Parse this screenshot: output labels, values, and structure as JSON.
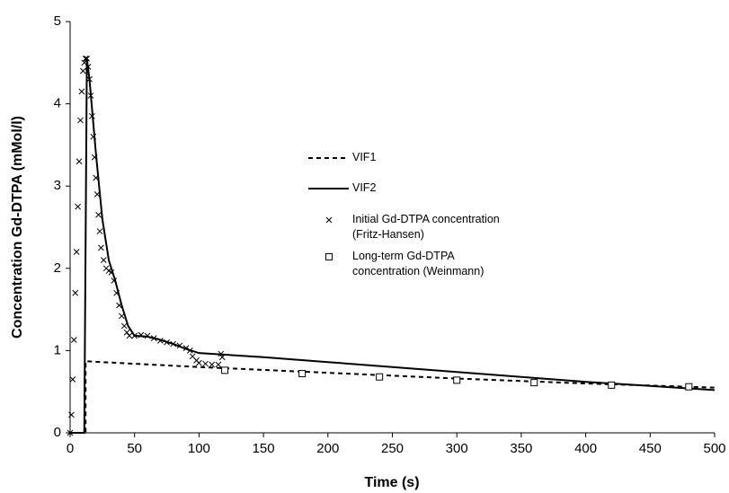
{
  "chart_data": {
    "type": "line",
    "xlabel": "Time (s)",
    "ylabel": "Concentration Gd-DTPA  (mMol/l)",
    "xlim": [
      0,
      500
    ],
    "xticks": [
      0,
      50,
      100,
      150,
      200,
      250,
      300,
      350,
      400,
      450,
      500
    ],
    "ylim": [
      0,
      5
    ],
    "yticks": [
      0,
      1,
      2,
      3,
      4,
      5
    ],
    "series": [
      {
        "name": "VIF1",
        "color": "#000000",
        "style": "dashed",
        "x": [
          0,
          12,
          12,
          100,
          200,
          300,
          400,
          500
        ],
        "values": [
          0,
          0,
          0.87,
          0.8,
          0.73,
          0.66,
          0.6,
          0.55
        ]
      },
      {
        "name": "VIF2",
        "color": "#000000",
        "style": "solid",
        "x": [
          0,
          11,
          13,
          15,
          20,
          25,
          30,
          35,
          40,
          45,
          50,
          60,
          70,
          80,
          90,
          100,
          150,
          200,
          250,
          300,
          350,
          400,
          450,
          500
        ],
        "values": [
          0,
          0,
          4.55,
          4.3,
          3.4,
          2.6,
          2.1,
          1.85,
          1.55,
          1.3,
          1.18,
          1.17,
          1.13,
          1.08,
          1.02,
          0.97,
          0.92,
          0.86,
          0.8,
          0.74,
          0.68,
          0.62,
          0.57,
          0.52
        ]
      },
      {
        "name": "Initial Gd-DTPA concentration (Fritz-Hansen)",
        "color": "#000000",
        "marker": "x",
        "x": [
          0,
          1,
          2,
          3,
          4,
          5,
          6,
          7,
          8,
          9,
          10,
          11,
          12,
          13,
          14,
          15,
          16,
          17,
          18,
          19,
          20,
          21,
          22,
          23,
          24,
          26,
          28,
          30,
          32,
          34,
          36,
          38,
          40,
          42,
          44,
          46,
          50,
          55,
          60,
          65,
          70,
          75,
          80,
          85,
          90,
          93,
          95,
          98,
          100,
          105,
          110,
          115,
          117,
          118
        ],
        "values": [
          0,
          0.22,
          0.65,
          1.13,
          1.7,
          2.2,
          2.75,
          3.3,
          3.8,
          4.15,
          4.4,
          4.5,
          4.55,
          4.55,
          4.45,
          4.3,
          4.1,
          3.85,
          3.6,
          3.35,
          3.1,
          2.9,
          2.65,
          2.45,
          2.25,
          2.1,
          2.0,
          1.97,
          1.95,
          1.85,
          1.7,
          1.55,
          1.42,
          1.3,
          1.22,
          1.18,
          1.18,
          1.19,
          1.18,
          1.15,
          1.12,
          1.1,
          1.08,
          1.06,
          1.03,
          1.0,
          0.93,
          0.88,
          0.85,
          0.84,
          0.83,
          0.83,
          0.96,
          0.92
        ]
      },
      {
        "name": "Long-term Gd-DTPA concentration (Weinmann)",
        "color": "#000000",
        "marker": "square",
        "x": [
          120,
          180,
          240,
          300,
          360,
          420,
          480
        ],
        "values": [
          0.76,
          0.72,
          0.68,
          0.64,
          0.61,
          0.58,
          0.56
        ]
      }
    ]
  }
}
